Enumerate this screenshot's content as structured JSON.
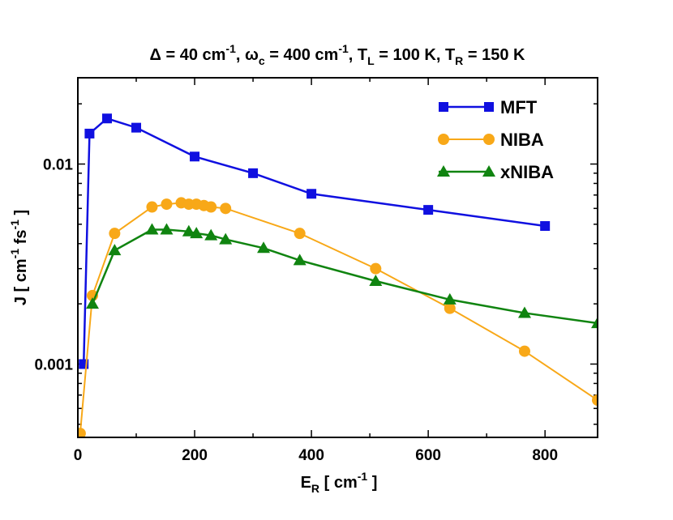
{
  "chart_data": {
    "type": "line",
    "title": {
      "delta_symbol": "Δ",
      "delta_value": " = 40 cm",
      "delta_exp": "-1",
      "omega_symbol": ", ω",
      "omega_sub": "c",
      "omega_value": " = 400 cm",
      "omega_exp": "-1",
      "tl_label": ", T",
      "tl_sub": "L",
      "tl_value": " = 100 K, T",
      "tr_sub": "R",
      "tr_value": " = 150 K"
    },
    "xlabel": {
      "main": "E",
      "sub": "R",
      "unit_open": " [ cm",
      "exp": "-1",
      "unit_close": " ]"
    },
    "ylabel": {
      "main": "J [ cm",
      "exp1": "-1",
      "mid": " fs",
      "exp2": "-1",
      "close": " ]"
    },
    "xlim": [
      0,
      890
    ],
    "ylim": [
      0.00043,
      0.027
    ],
    "yscale": "log",
    "x_ticks": [
      {
        "value": 0,
        "label": "0"
      },
      {
        "value": 200,
        "label": "200"
      },
      {
        "value": 400,
        "label": "400"
      },
      {
        "value": 600,
        "label": "600"
      },
      {
        "value": 800,
        "label": "800"
      }
    ],
    "y_ticks": [
      {
        "value": 0.001,
        "label": "0.001"
      },
      {
        "value": 0.01,
        "label": "0.01"
      }
    ],
    "legend_position": "top-right",
    "series": [
      {
        "name": "MFT",
        "color": "#1010e0",
        "marker": "square",
        "x": [
          10,
          20,
          50,
          100,
          200,
          300,
          400,
          600,
          800
        ],
        "y": [
          0.001,
          0.0142,
          0.0169,
          0.0152,
          0.0109,
          0.009,
          0.0071,
          0.0059,
          0.0049
        ]
      },
      {
        "name": "NIBA",
        "color": "#f8a818",
        "marker": "circle",
        "x": [
          4,
          25,
          63,
          127,
          152,
          177,
          190,
          203,
          216,
          228,
          253,
          380,
          510,
          637,
          765,
          890
        ],
        "y": [
          0.00045,
          0.0022,
          0.0045,
          0.0061,
          0.0063,
          0.0064,
          0.0063,
          0.0063,
          0.0062,
          0.0061,
          0.006,
          0.0045,
          0.003,
          0.0019,
          0.00116,
          0.00066
        ]
      },
      {
        "name": "xNIBA",
        "color": "#108410",
        "marker": "triangle",
        "x": [
          25,
          63,
          127,
          152,
          190,
          203,
          228,
          253,
          318,
          380,
          510,
          637,
          765,
          890
        ],
        "y": [
          0.002,
          0.0037,
          0.0047,
          0.0047,
          0.0046,
          0.0045,
          0.0044,
          0.0042,
          0.0038,
          0.0033,
          0.0026,
          0.0021,
          0.0018,
          0.0016
        ]
      }
    ]
  }
}
